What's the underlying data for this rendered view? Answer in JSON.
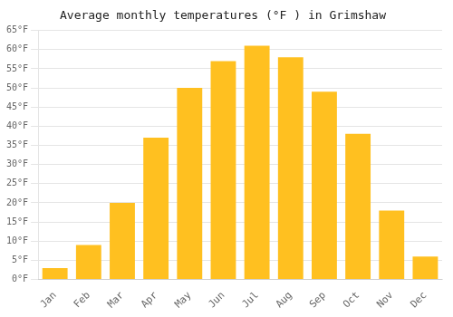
{
  "chart_data": {
    "type": "bar",
    "title": "Average monthly temperatures (°F ) in Grimshaw",
    "categories": [
      "Jan",
      "Feb",
      "Mar",
      "Apr",
      "May",
      "Jun",
      "Jul",
      "Aug",
      "Sep",
      "Oct",
      "Nov",
      "Dec"
    ],
    "values": [
      3,
      9,
      20,
      37,
      50,
      57,
      61,
      58,
      49,
      38,
      18,
      6
    ],
    "color": "#FFC020",
    "ylim": [
      0,
      65
    ],
    "yticks": [
      {
        "value": 0,
        "label": "0°F"
      },
      {
        "value": 5,
        "label": "5°F"
      },
      {
        "value": 10,
        "label": "10°F"
      },
      {
        "value": 15,
        "label": "15°F"
      },
      {
        "value": 20,
        "label": "20°F"
      },
      {
        "value": 25,
        "label": "25°F"
      },
      {
        "value": 30,
        "label": "30°F"
      },
      {
        "value": 35,
        "label": "35°F"
      },
      {
        "value": 40,
        "label": "40°F"
      },
      {
        "value": 45,
        "label": "45°F"
      },
      {
        "value": 50,
        "label": "50°F"
      },
      {
        "value": 55,
        "label": "55°F"
      },
      {
        "value": 60,
        "label": "60°F"
      },
      {
        "value": 65,
        "label": "65°F"
      }
    ],
    "grid": true
  }
}
